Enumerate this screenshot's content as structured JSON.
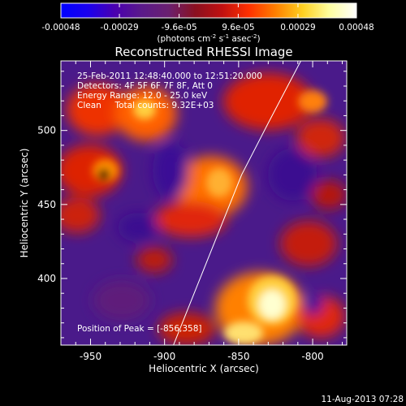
{
  "colorbar": {
    "tick_labels": [
      "-0.00048",
      "-0.00029",
      "-9.6e-05",
      "9.6e-05",
      "0.00029",
      "0.00048"
    ],
    "tick_values": [
      -0.00048,
      -0.00029,
      -9.6e-05,
      9.6e-05,
      0.00029,
      0.00048
    ],
    "range": [
      -0.00048,
      0.00048
    ],
    "units_prefix": "(photons cm",
    "units_exp1": "-2",
    "units_mid": " s",
    "units_exp2": "-1",
    "units_mid2": " asec",
    "units_exp3": "-2",
    "units_suffix": ")",
    "colors": [
      "#0000ff",
      "#1a00ee",
      "#4a00b0",
      "#5a1a8a",
      "#6a2070",
      "#8a1020",
      "#c01010",
      "#ff3000",
      "#ff8000",
      "#ffd020",
      "#ffffa0",
      "#ffffff"
    ]
  },
  "chart_data": {
    "type": "heatmap",
    "title": "Reconstructed RHESSI Image",
    "info_lines": [
      "25-Feb-2011 12:48:40.000 to 12:51:20.000",
      "Detectors: 4F 5F 6F 7F 8F, Att 0",
      "Energy Range: 12.0 - 25.0 keV",
      "Clean     Total counts: 9.32E+03"
    ],
    "xlabel": "Heliocentric X (arcsec)",
    "ylabel": "Heliocentric Y (arcsec)",
    "xlim": [
      -970,
      -777
    ],
    "ylim": [
      355,
      547
    ],
    "xticks": [
      -950,
      -900,
      -850,
      -800
    ],
    "xtick_labels": [
      "-950",
      "-900",
      "-850",
      "-800"
    ],
    "yticks": [
      400,
      450,
      500
    ],
    "ytick_labels": [
      "400",
      "450",
      "500"
    ],
    "peak_label": "Position of Peak = [-856,358]",
    "peak": [
      -856,
      358
    ],
    "limb_line": [
      [
        -894,
        355
      ],
      [
        -880,
        390
      ],
      [
        -864,
        430
      ],
      [
        -848,
        470
      ],
      [
        -830,
        505
      ],
      [
        -808,
        547
      ]
    ]
  },
  "footer": {
    "timestamp": "11-Aug-2013 07:28"
  }
}
